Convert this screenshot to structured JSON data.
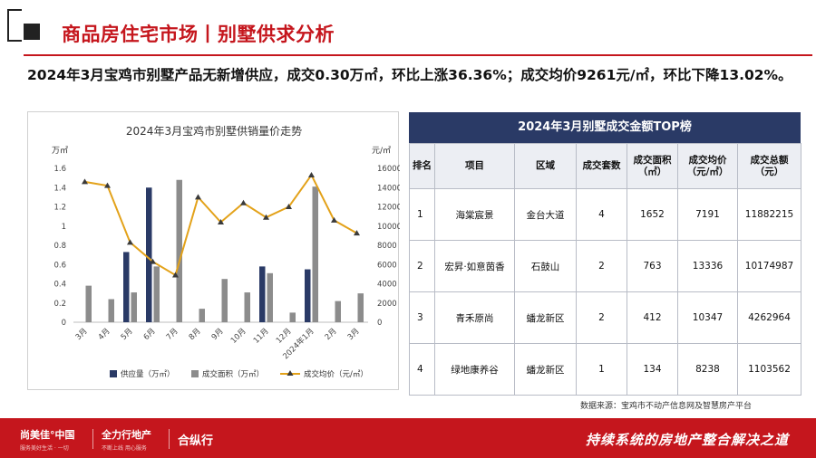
{
  "page": {
    "title": "商品房住宅市场丨别墅供求分析",
    "headline": "2024年3月宝鸡市别墅产品无新增供应，成交0.30万㎡，环比上涨36.36%；成交均价9261元/㎡，环比下降13.02%。"
  },
  "chart_data": {
    "type": "bar",
    "title": "2024年3月宝鸡市别墅供销量价走势",
    "left_unit": "万㎡",
    "right_unit": "元/㎡",
    "categories": [
      "3月",
      "4月",
      "5月",
      "6月",
      "7月",
      "8月",
      "9月",
      "10月",
      "11月",
      "12月",
      "2024年1月",
      "2月",
      "3月"
    ],
    "ylim": [
      0,
      1.6
    ],
    "y_ticks": [
      "0",
      "0.2",
      "0.4",
      "0.6",
      "0.8",
      "1",
      "1.2",
      "1.4",
      "1.6"
    ],
    "y2lim": [
      0,
      16000
    ],
    "y2_ticks": [
      "0",
      "2000",
      "4000",
      "6000",
      "8000",
      "10000",
      "12000",
      "14000",
      "16000"
    ],
    "series": [
      {
        "name": "供应量（万㎡）",
        "type": "bar",
        "color": "#2a3a66",
        "values": [
          0,
          0,
          0.73,
          1.4,
          0,
          0,
          0,
          0,
          0.58,
          0,
          0.55,
          0,
          0
        ]
      },
      {
        "name": "成交面积（万㎡）",
        "type": "bar",
        "color": "#8c8c8c",
        "values": [
          0.38,
          0.24,
          0.31,
          0.58,
          1.48,
          0.14,
          0.45,
          0.31,
          0.51,
          0.1,
          1.41,
          0.22,
          0.3
        ]
      },
      {
        "name": "成交均价（元/㎡）",
        "type": "line",
        "axis": "right",
        "color": "#e3a21a",
        "values": [
          14600,
          14200,
          8300,
          6300,
          4900,
          13000,
          10400,
          12400,
          10900,
          12000,
          15300,
          10600,
          9261
        ]
      }
    ],
    "legend_position": "bottom",
    "grid": false
  },
  "table": {
    "title": "2024年3月别墅成交金额TOP榜",
    "headers": [
      "排名",
      "项目",
      "区域",
      "成交套数",
      "成交面积（㎡）",
      "成交均价（元/㎡）",
      "成交总额（元）"
    ],
    "rows": [
      [
        "1",
        "海棠宸景",
        "金台大道",
        "4",
        "1652",
        "7191",
        "11882215"
      ],
      [
        "2",
        "宏昇·如意茵香",
        "石鼓山",
        "2",
        "763",
        "13336",
        "10174987"
      ],
      [
        "3",
        "青禾原尚",
        "蟠龙新区",
        "2",
        "412",
        "10347",
        "4262964"
      ],
      [
        "4",
        "绿地康养谷",
        "蟠龙新区",
        "1",
        "134",
        "8238",
        "1103562"
      ]
    ],
    "source": "数据来源：宝鸡市不动产信息网及智慧房产平台"
  },
  "footer": {
    "brand1": "尚美佳°中国",
    "brand1_sub": "服务美好生活 · 一切",
    "brand2": "全力行地产",
    "brand2_sub": "不断上线 用心服务",
    "brand3": "合纵行",
    "slogan": "持续系统的房地产整合解决之道"
  },
  "colors": {
    "brand_red": "#c5161d",
    "navy": "#2a3a66",
    "gray_bar": "#8c8c8c",
    "price_line": "#e3a21a"
  }
}
